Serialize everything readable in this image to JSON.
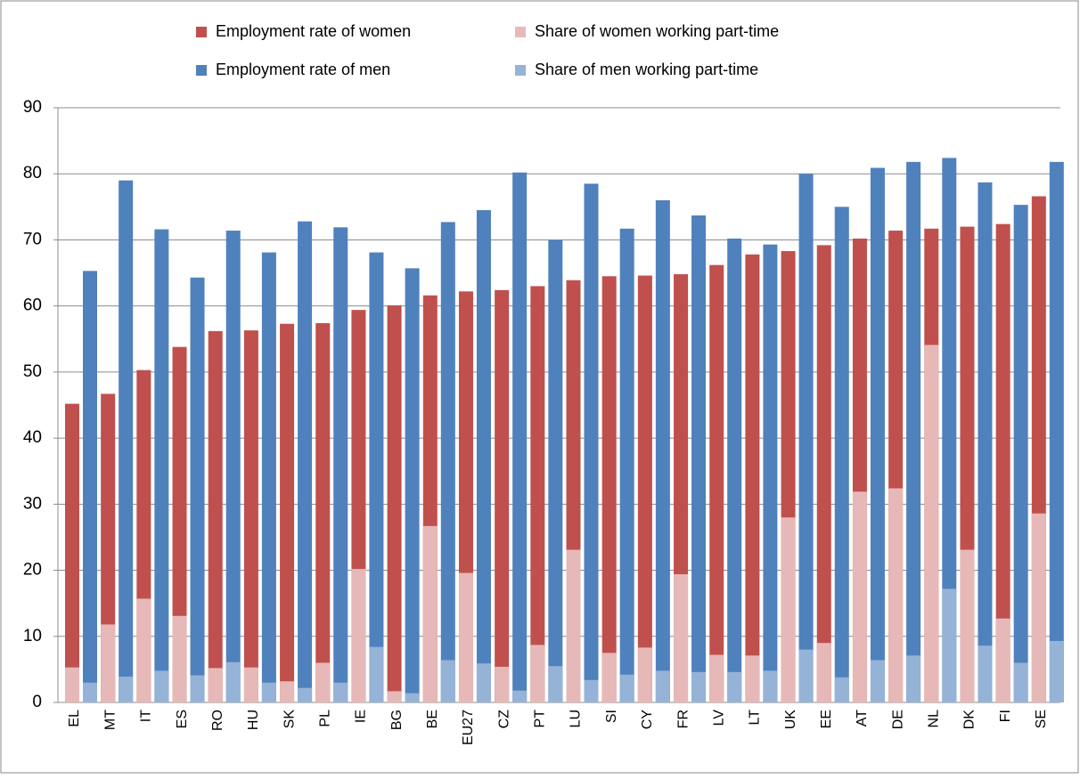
{
  "chart_data": {
    "type": "bar",
    "categories": [
      "EL",
      "MT",
      "IT",
      "ES",
      "RO",
      "HU",
      "SK",
      "PL",
      "IE",
      "BG",
      "BE",
      "EU27",
      "CZ",
      "PT",
      "LU",
      "SI",
      "CY",
      "FR",
      "LV",
      "LT",
      "UK",
      "EE",
      "AT",
      "DE",
      "NL",
      "DK",
      "FI",
      "SE"
    ],
    "series": [
      {
        "name": "Employment rate of women",
        "color": "#c0504d",
        "values": [
          45.2,
          46.7,
          50.3,
          53.8,
          56.2,
          56.3,
          57.3,
          57.4,
          59.4,
          60.1,
          61.6,
          62.2,
          62.4,
          63.0,
          63.9,
          64.5,
          64.6,
          64.8,
          66.2,
          67.8,
          68.3,
          69.2,
          70.2,
          71.4,
          71.7,
          72.0,
          72.4,
          76.6
        ]
      },
      {
        "name": "Share of women working part-time",
        "color": "#e6b9b8",
        "values": [
          5.3,
          11.8,
          15.7,
          13.1,
          5.2,
          5.3,
          3.2,
          6.0,
          20.2,
          1.7,
          26.7,
          19.6,
          5.4,
          8.7,
          23.1,
          7.5,
          8.3,
          19.4,
          7.2,
          7.1,
          28.0,
          9.0,
          31.9,
          32.4,
          54.1,
          23.1,
          12.7,
          28.6
        ]
      },
      {
        "name": "Employment rate of men",
        "color": "#4f81bd",
        "values": [
          65.3,
          79.0,
          71.6,
          64.3,
          71.4,
          68.1,
          72.8,
          71.9,
          68.1,
          65.7,
          72.7,
          74.5,
          80.2,
          70.0,
          78.5,
          71.7,
          76.0,
          73.7,
          70.2,
          69.3,
          80.0,
          75.0,
          80.9,
          81.8,
          82.4,
          78.7,
          75.3,
          81.8
        ]
      },
      {
        "name": "Share of men working part-time",
        "color": "#95b3d7",
        "values": [
          3.0,
          3.9,
          4.8,
          4.1,
          6.1,
          3.0,
          2.2,
          3.0,
          8.4,
          1.4,
          6.4,
          5.9,
          1.8,
          5.5,
          3.4,
          4.2,
          4.8,
          4.6,
          4.6,
          4.8,
          8.0,
          3.8,
          6.4,
          7.1,
          17.2,
          8.6,
          6.0,
          9.3
        ]
      }
    ],
    "ylim": [
      0,
      90
    ],
    "yticks": [
      0,
      10,
      20,
      30,
      40,
      50,
      60,
      70,
      80,
      90
    ],
    "grid": true,
    "legend": "top"
  }
}
